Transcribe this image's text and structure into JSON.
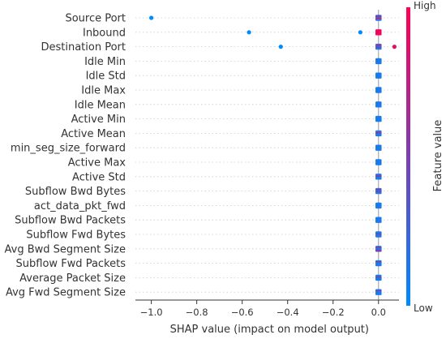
{
  "chart_data": {
    "type": "scatter",
    "subtype": "shap-beeswarm",
    "xlabel": "SHAP value (impact on model output)",
    "xlim": [
      -1.07,
      0.09
    ],
    "x_ticks": [
      -1.0,
      -0.8,
      -0.6,
      -0.4,
      -0.2,
      0.0
    ],
    "x_tick_labels": [
      "−1.0",
      "−0.8",
      "−0.6",
      "−0.4",
      "−0.2",
      "0.0"
    ],
    "features": [
      "Source Port",
      "Inbound",
      "Destination Port",
      "Idle Min",
      "Idle Std",
      "Idle Max",
      "Idle Mean",
      "Active Min",
      "Active Mean",
      "min_seg_size_forward",
      "Active Max",
      "Active Std",
      "Subflow Bwd Bytes",
      "act_data_pkt_fwd",
      "Subflow Bwd Packets",
      "Subflow Fwd Bytes",
      "Avg Bwd Segment Size",
      "Subflow Fwd Packets",
      "Average Packet Size",
      "Avg Fwd Segment Size"
    ],
    "outlier_points": [
      {
        "feature": "Source Port",
        "x": -1.0,
        "feature_value": 0.0
      },
      {
        "feature": "Inbound",
        "x": -0.57,
        "feature_value": 0.0
      },
      {
        "feature": "Inbound",
        "x": -0.08,
        "feature_value": 0.0
      },
      {
        "feature": "Destination Port",
        "x": -0.43,
        "feature_value": 0.0
      },
      {
        "feature": "Destination Port",
        "x": 0.07,
        "feature_value": 0.85
      }
    ],
    "center_color_pattern": {
      "Source Port": [
        0.1,
        0.9,
        0.1,
        0.9,
        0.1
      ],
      "Inbound": [
        0.95,
        0.95,
        0.95,
        0.95,
        0.95
      ],
      "Destination Port": [
        0.1,
        0.9,
        0.1,
        0.6,
        0.1
      ],
      "Active Mean": [
        0.1,
        0.1,
        0.9,
        0.1,
        0.1
      ],
      "Active Std": [
        0.1,
        0.1,
        0.7,
        0.1,
        0.1
      ],
      "Subflow Bwd Bytes": [
        0.1,
        0.6,
        0.1,
        0.6,
        0.1
      ],
      "Subflow Fwd Bytes": [
        0.1,
        0.1,
        0.6,
        0.1,
        0.1
      ],
      "Avg Bwd Segment Size": [
        0.1,
        0.6,
        0.1,
        0.1,
        0.5
      ],
      "Subflow Fwd Packets": [
        0.1,
        0.6,
        0.1,
        0.1,
        0.1
      ],
      "Average Packet Size": [
        0.1,
        0.1,
        0.6,
        0.1,
        0.1
      ],
      "Avg Fwd Segment Size": [
        0.1,
        0.6,
        0.1,
        0.1,
        0.1
      ]
    },
    "colorbar": {
      "label": "Feature value",
      "high_label": "High",
      "low_label": "Low",
      "low_color": "#008afb",
      "mid_color": "#7c3fb0",
      "high_color": "#ff0052"
    }
  }
}
